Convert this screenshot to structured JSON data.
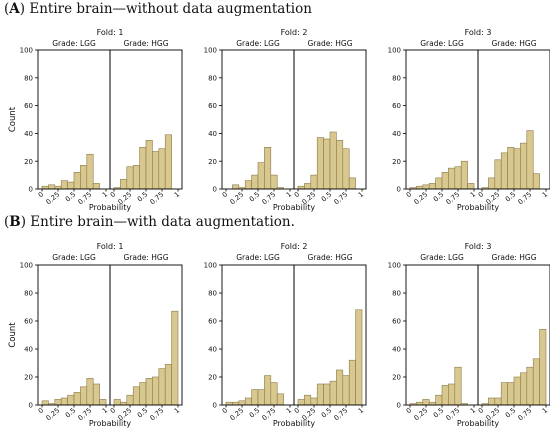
{
  "sections": [
    {
      "letter": "A",
      "text": " Entire brain—without data augmentation"
    },
    {
      "letter": "B",
      "text": " Entire brain—with data augmentation."
    }
  ],
  "ylabel": "Count",
  "xlabel": "Probability",
  "colors": {
    "bar_fill": "#d8c78f",
    "bar_stroke": "#8c7a45",
    "axis": "#000000"
  },
  "chart_data": [
    {
      "type": "bar",
      "section": "A",
      "fold_title": "Fold: 1",
      "show_ylabel": true,
      "ylim": [
        0,
        100
      ],
      "yticks": [
        0,
        20,
        40,
        60,
        80,
        100
      ],
      "xticks": [
        "0",
        "0.25",
        "0.5",
        "0.75",
        "1"
      ],
      "xlabel": "Probability",
      "facets": [
        {
          "title": "Grade: LGG",
          "bin_edges": [
            0,
            0.1,
            0.2,
            0.3,
            0.4,
            0.5,
            0.6,
            0.7,
            0.8,
            0.9,
            1.0
          ],
          "values": [
            2,
            3,
            2,
            6,
            5,
            12,
            17,
            25,
            4,
            0
          ]
        },
        {
          "title": "Grade: HGG",
          "bin_edges": [
            0,
            0.1,
            0.2,
            0.3,
            0.4,
            0.5,
            0.6,
            0.7,
            0.8,
            0.9,
            1.0
          ],
          "values": [
            1,
            7,
            16,
            17,
            30,
            35,
            27,
            29,
            39,
            0
          ]
        }
      ]
    },
    {
      "type": "bar",
      "section": "A",
      "fold_title": "Fold: 2",
      "show_ylabel": false,
      "ylim": [
        0,
        100
      ],
      "yticks": [
        0,
        20,
        40,
        60,
        80,
        100
      ],
      "xticks": [
        "0",
        "0.25",
        "0.5",
        "0.75",
        "1"
      ],
      "xlabel": "Probability",
      "facets": [
        {
          "title": "Grade: LGG",
          "bin_edges": [
            0,
            0.1,
            0.2,
            0.3,
            0.4,
            0.5,
            0.6,
            0.7,
            0.8,
            0.9,
            1.0
          ],
          "values": [
            0,
            3,
            1,
            6,
            10,
            19,
            30,
            10,
            1,
            0
          ]
        },
        {
          "title": "Grade: HGG",
          "bin_edges": [
            0,
            0.1,
            0.2,
            0.3,
            0.4,
            0.5,
            0.6,
            0.7,
            0.8,
            0.9,
            1.0
          ],
          "values": [
            2,
            4,
            10,
            37,
            36,
            41,
            35,
            29,
            8,
            0
          ]
        }
      ]
    },
    {
      "type": "bar",
      "section": "A",
      "fold_title": "Fold: 3",
      "show_ylabel": false,
      "ylim": [
        0,
        100
      ],
      "yticks": [
        0,
        20,
        40,
        60,
        80,
        100
      ],
      "xticks": [
        "0",
        "0.25",
        "0.5",
        "0.75",
        "1"
      ],
      "xlabel": "Probability",
      "facets": [
        {
          "title": "Grade: LGG",
          "bin_edges": [
            0,
            0.1,
            0.2,
            0.3,
            0.4,
            0.5,
            0.6,
            0.7,
            0.8,
            0.9,
            1.0
          ],
          "values": [
            1,
            2,
            3,
            4,
            8,
            12,
            15,
            16,
            20,
            4
          ]
        },
        {
          "title": "Grade: HGG",
          "bin_edges": [
            0,
            0.1,
            0.2,
            0.3,
            0.4,
            0.5,
            0.6,
            0.7,
            0.8,
            0.9,
            1.0
          ],
          "values": [
            1,
            8,
            21,
            26,
            30,
            29,
            33,
            42,
            11,
            0
          ]
        }
      ]
    },
    {
      "type": "bar",
      "section": "B",
      "fold_title": "Fold: 1",
      "show_ylabel": true,
      "ylim": [
        0,
        100
      ],
      "yticks": [
        0,
        20,
        40,
        60,
        80,
        100
      ],
      "xticks": [
        "0",
        "0.25",
        "0.5",
        "0.75",
        "1"
      ],
      "xlabel": "Probability",
      "facets": [
        {
          "title": "Grade: LGG",
          "bin_edges": [
            0,
            0.1,
            0.2,
            0.3,
            0.4,
            0.5,
            0.6,
            0.7,
            0.8,
            0.9,
            1.0
          ],
          "values": [
            3,
            1,
            4,
            5,
            7,
            9,
            13,
            19,
            15,
            4
          ]
        },
        {
          "title": "Grade: HGG",
          "bin_edges": [
            0,
            0.1,
            0.2,
            0.3,
            0.4,
            0.5,
            0.6,
            0.7,
            0.8,
            0.9,
            1.0
          ],
          "values": [
            4,
            2,
            7,
            13,
            16,
            19,
            20,
            26,
            29,
            67
          ]
        }
      ]
    },
    {
      "type": "bar",
      "section": "B",
      "fold_title": "Fold: 2",
      "show_ylabel": false,
      "ylim": [
        0,
        100
      ],
      "yticks": [
        0,
        20,
        40,
        60,
        80,
        100
      ],
      "xticks": [
        "0",
        "0.25",
        "0.5",
        "0.75",
        "1"
      ],
      "xlabel": "Probability",
      "facets": [
        {
          "title": "Grade: LGG",
          "bin_edges": [
            0,
            0.1,
            0.2,
            0.3,
            0.4,
            0.5,
            0.6,
            0.7,
            0.8,
            0.9,
            1.0
          ],
          "values": [
            2,
            2,
            3,
            5,
            11,
            11,
            21,
            16,
            8,
            0
          ]
        },
        {
          "title": "Grade: HGG",
          "bin_edges": [
            0,
            0.1,
            0.2,
            0.3,
            0.4,
            0.5,
            0.6,
            0.7,
            0.8,
            0.9,
            1.0
          ],
          "values": [
            4,
            7,
            5,
            15,
            15,
            17,
            25,
            21,
            32,
            68
          ]
        }
      ]
    },
    {
      "type": "bar",
      "section": "B",
      "fold_title": "Fold: 3",
      "show_ylabel": false,
      "ylim": [
        0,
        100
      ],
      "yticks": [
        0,
        20,
        40,
        60,
        80,
        100
      ],
      "xticks": [
        "0",
        "0.25",
        "0.5",
        "0.75",
        "1"
      ],
      "xlabel": "Probability",
      "facets": [
        {
          "title": "Grade: LGG",
          "bin_edges": [
            0,
            0.1,
            0.2,
            0.3,
            0.4,
            0.5,
            0.6,
            0.7,
            0.8,
            0.9,
            1.0
          ],
          "values": [
            1,
            2,
            4,
            2,
            7,
            14,
            15,
            27,
            1,
            0
          ]
        },
        {
          "title": "Grade: HGG",
          "bin_edges": [
            0,
            0.1,
            0.2,
            0.3,
            0.4,
            0.5,
            0.6,
            0.7,
            0.8,
            0.9,
            1.0
          ],
          "values": [
            1,
            5,
            5,
            16,
            16,
            20,
            23,
            27,
            33,
            54
          ]
        }
      ]
    }
  ]
}
